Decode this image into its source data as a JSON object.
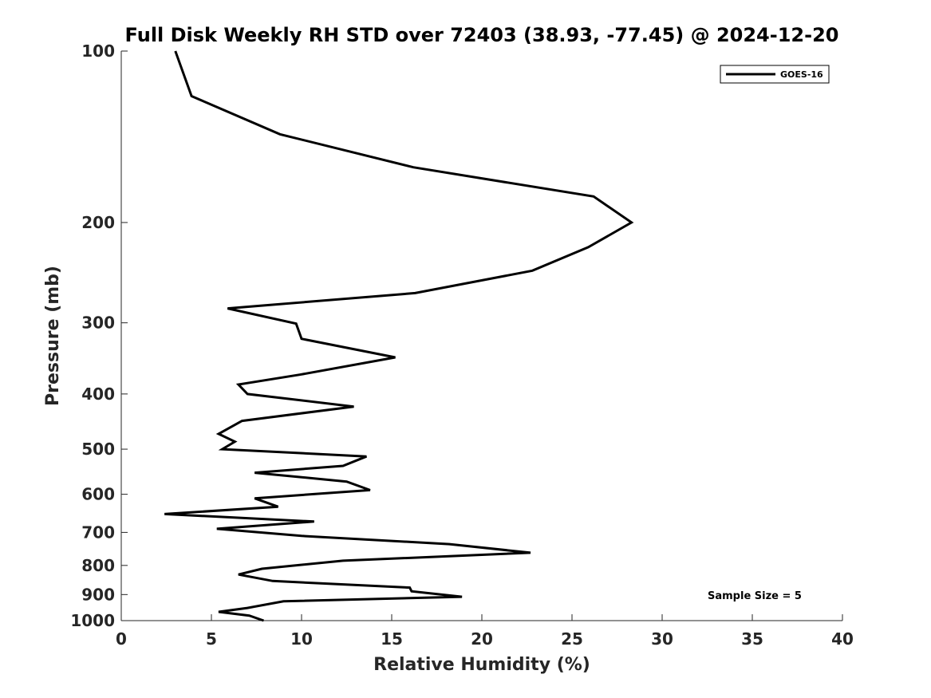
{
  "chart_data": {
    "type": "line",
    "title": "Full Disk Weekly RH STD over 72403 (38.93, -77.45) @ 2024-12-20",
    "xlabel": "Relative Humidity (%)",
    "ylabel": "Pressure (mb)",
    "xlim": [
      0,
      40
    ],
    "ylim": [
      100,
      1000
    ],
    "y_scale": "log",
    "y_reversed": true,
    "x_ticks": [
      0,
      5,
      10,
      15,
      20,
      25,
      30,
      35,
      40
    ],
    "y_ticks": [
      100,
      200,
      300,
      400,
      500,
      600,
      700,
      800,
      900,
      1000
    ],
    "grid": false,
    "legend_position": "top-right",
    "annotation": "Sample Size = 5",
    "series": [
      {
        "name": "GOES-16",
        "color": "#000000",
        "points": [
          [
            3.0,
            100
          ],
          [
            3.9,
            120
          ],
          [
            8.8,
            140
          ],
          [
            16.2,
            160
          ],
          [
            26.2,
            180
          ],
          [
            28.3,
            200
          ],
          [
            25.9,
            221
          ],
          [
            22.8,
            243
          ],
          [
            16.3,
            266
          ],
          [
            5.9,
            283
          ],
          [
            9.7,
            301
          ],
          [
            10.0,
            320
          ],
          [
            15.2,
            345
          ],
          [
            9.9,
            370
          ],
          [
            6.5,
            385
          ],
          [
            7.0,
            400
          ],
          [
            12.9,
            421
          ],
          [
            6.7,
            446
          ],
          [
            5.4,
            470
          ],
          [
            6.3,
            485
          ],
          [
            5.6,
            500
          ],
          [
            13.6,
            515
          ],
          [
            12.3,
            535
          ],
          [
            7.4,
            550
          ],
          [
            12.5,
            570
          ],
          [
            13.8,
            590
          ],
          [
            7.4,
            610
          ],
          [
            8.7,
            631
          ],
          [
            2.4,
            650
          ],
          [
            10.7,
            670
          ],
          [
            5.3,
            690
          ],
          [
            10.0,
            710
          ],
          [
            18.2,
            734
          ],
          [
            22.7,
            760
          ],
          [
            12.3,
            785
          ],
          [
            7.8,
            811
          ],
          [
            6.5,
            830
          ],
          [
            8.4,
            852
          ],
          [
            16.0,
            875
          ],
          [
            16.1,
            888
          ],
          [
            18.9,
            908
          ],
          [
            9.0,
            925
          ],
          [
            7.0,
            950
          ],
          [
            5.4,
            965
          ],
          [
            7.1,
            980
          ],
          [
            7.9,
            1000
          ]
        ]
      }
    ]
  }
}
